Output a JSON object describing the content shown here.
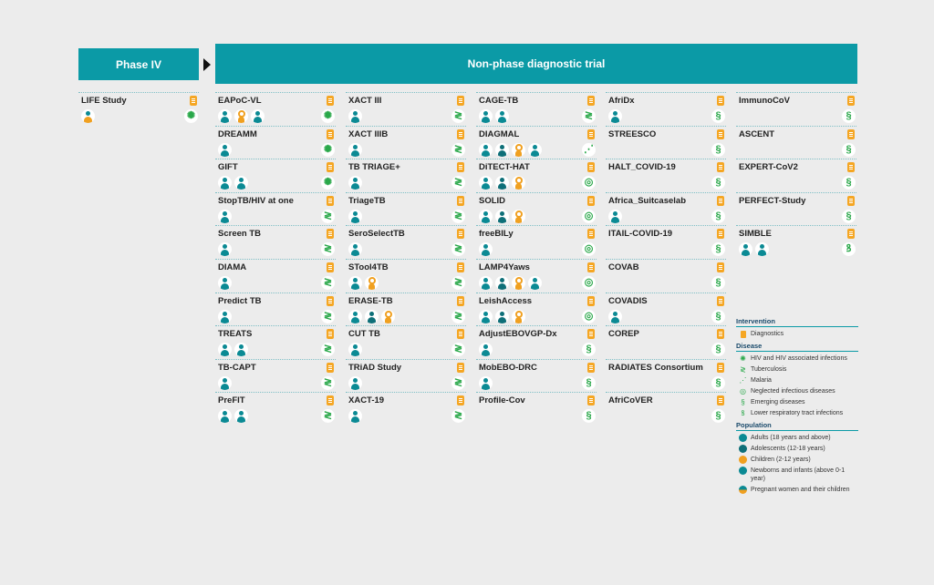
{
  "headers": {
    "phase4": "Phase IV",
    "nonphase": "Non-phase diagnostic trial"
  },
  "icon_map": {
    "hiv": "✺",
    "tb": "≷",
    "malaria": "⋰",
    "ntd": "◎",
    "emerging": "§",
    "lrti": "ꝸ"
  },
  "columns": [
    {
      "trials": [
        {
          "name": "LIFE Study",
          "pops": [
            "preg"
          ],
          "disease": "hiv"
        }
      ]
    },
    {
      "trials": [
        {
          "name": "EAPoC-VL",
          "pops": [
            "adult",
            "child",
            "newborn"
          ],
          "disease": "hiv"
        },
        {
          "name": "DREAMM",
          "pops": [
            "adult"
          ],
          "disease": "hiv"
        },
        {
          "name": "GIFT",
          "pops": [
            "adult",
            "adult"
          ],
          "disease": "hiv"
        },
        {
          "name": "StopTB/HIV at one",
          "pops": [
            "adult"
          ],
          "disease": "tb"
        },
        {
          "name": "Screen TB",
          "pops": [
            "adult"
          ],
          "disease": "tb"
        },
        {
          "name": "DIAMA",
          "pops": [
            "adult"
          ],
          "disease": "tb"
        },
        {
          "name": "Predict TB",
          "pops": [
            "adult"
          ],
          "disease": "tb"
        },
        {
          "name": "TREATS",
          "pops": [
            "adult",
            "adult"
          ],
          "disease": "tb"
        },
        {
          "name": "TB-CAPT",
          "pops": [
            "adult"
          ],
          "disease": "tb"
        },
        {
          "name": "PreFIT",
          "pops": [
            "adult",
            "adult"
          ],
          "disease": "tb"
        }
      ]
    },
    {
      "trials": [
        {
          "name": "XACT III",
          "pops": [
            "adult"
          ],
          "disease": "tb"
        },
        {
          "name": "XACT IIIB",
          "pops": [
            "adult"
          ],
          "disease": "tb"
        },
        {
          "name": "TB TRIAGE+",
          "pops": [
            "adult"
          ],
          "disease": "tb"
        },
        {
          "name": "TriageTB",
          "pops": [
            "adult"
          ],
          "disease": "tb"
        },
        {
          "name": "SeroSelectTB",
          "pops": [
            "adult"
          ],
          "disease": "tb"
        },
        {
          "name": "STool4TB",
          "pops": [
            "adult",
            "child"
          ],
          "disease": "tb"
        },
        {
          "name": "ERASE-TB",
          "pops": [
            "adult",
            "adol",
            "child"
          ],
          "disease": "tb"
        },
        {
          "name": "CUT TB",
          "pops": [
            "adult"
          ],
          "disease": "tb"
        },
        {
          "name": "TRiAD Study",
          "pops": [
            "adult"
          ],
          "disease": "tb"
        },
        {
          "name": "XACT-19",
          "pops": [
            "adult"
          ],
          "disease": "tb"
        }
      ]
    },
    {
      "trials": [
        {
          "name": "CAGE-TB",
          "pops": [
            "adult",
            "adult"
          ],
          "disease": "tb"
        },
        {
          "name": "DIAGMAL",
          "pops": [
            "adult",
            "adol",
            "child",
            "newborn"
          ],
          "disease": "malaria"
        },
        {
          "name": "DiTECT-HAT",
          "pops": [
            "adult",
            "adol",
            "child"
          ],
          "disease": "ntd"
        },
        {
          "name": "SOLID",
          "pops": [
            "adult",
            "adol",
            "child"
          ],
          "disease": "ntd"
        },
        {
          "name": "freeBILy",
          "pops": [
            "adult"
          ],
          "disease": "ntd"
        },
        {
          "name": "LAMP4Yaws",
          "pops": [
            "adult",
            "adol",
            "child",
            "newborn"
          ],
          "disease": "ntd"
        },
        {
          "name": "LeishAccess",
          "pops": [
            "adult",
            "adol",
            "child"
          ],
          "disease": "ntd"
        },
        {
          "name": "AdjustEBOVGP-Dx",
          "pops": [
            "adult"
          ],
          "disease": "emerging"
        },
        {
          "name": "MobEBO-DRC",
          "pops": [
            "adult"
          ],
          "disease": "emerging"
        },
        {
          "name": "Profile-Cov",
          "pops": [],
          "disease": "emerging"
        }
      ]
    },
    {
      "trials": [
        {
          "name": "AfriDx",
          "pops": [
            "adult"
          ],
          "disease": "emerging"
        },
        {
          "name": "STREESCO",
          "pops": [],
          "disease": "emerging"
        },
        {
          "name": "HALT_COVID-19",
          "pops": [],
          "disease": "emerging"
        },
        {
          "name": "Africa_Suitcaselab",
          "pops": [
            "adult"
          ],
          "disease": "emerging"
        },
        {
          "name": "ITAIL-COVID-19",
          "pops": [],
          "disease": "emerging"
        },
        {
          "name": "COVAB",
          "pops": [],
          "disease": "emerging"
        },
        {
          "name": "COVADIS",
          "pops": [
            "adult"
          ],
          "disease": "emerging"
        },
        {
          "name": "COREP",
          "pops": [],
          "disease": "emerging"
        },
        {
          "name": "RADIATES Consortium",
          "pops": [],
          "disease": "emerging"
        },
        {
          "name": "AfriCoVER",
          "pops": [],
          "disease": "emerging"
        }
      ]
    },
    {
      "trials": [
        {
          "name": "ImmunoCoV",
          "pops": [],
          "disease": "emerging"
        },
        {
          "name": "ASCENT",
          "pops": [],
          "disease": "emerging"
        },
        {
          "name": "EXPERT-CoV2",
          "pops": [],
          "disease": "emerging"
        },
        {
          "name": "PERFECT-Study",
          "pops": [],
          "disease": "emerging"
        },
        {
          "name": "SIMBLE",
          "pops": [
            "adult",
            "adult"
          ],
          "disease": "lrti"
        }
      ]
    }
  ],
  "legend": {
    "intervention": {
      "title": "Intervention",
      "items": [
        "Diagnostics"
      ]
    },
    "disease": {
      "title": "Disease",
      "items": [
        {
          "key": "hiv",
          "label": "HIV and HIV associated infections"
        },
        {
          "key": "tb",
          "label": "Tuberculosis"
        },
        {
          "key": "malaria",
          "label": "Malaria"
        },
        {
          "key": "ntd",
          "label": "Neglected infectious diseases"
        },
        {
          "key": "emerging",
          "label": "Emerging diseases"
        },
        {
          "key": "lrti",
          "label": "Lower respiratory tract infections"
        }
      ]
    },
    "population": {
      "title": "Population",
      "items": [
        {
          "key": "adult",
          "label": "Adults (18 years and above)"
        },
        {
          "key": "adol",
          "label": "Adolescents (12-18 years)"
        },
        {
          "key": "child",
          "label": "Children (2-12 years)"
        },
        {
          "key": "newborn",
          "label": "Newborns and infants (above 0-1 year)"
        },
        {
          "key": "preg",
          "label": "Pregnant women and their children"
        }
      ]
    }
  },
  "colors": {
    "header": "#0b9aa6",
    "diagnostic": "#f5a623",
    "disease": "#2aa84a",
    "adult": "#0b8a94"
  }
}
